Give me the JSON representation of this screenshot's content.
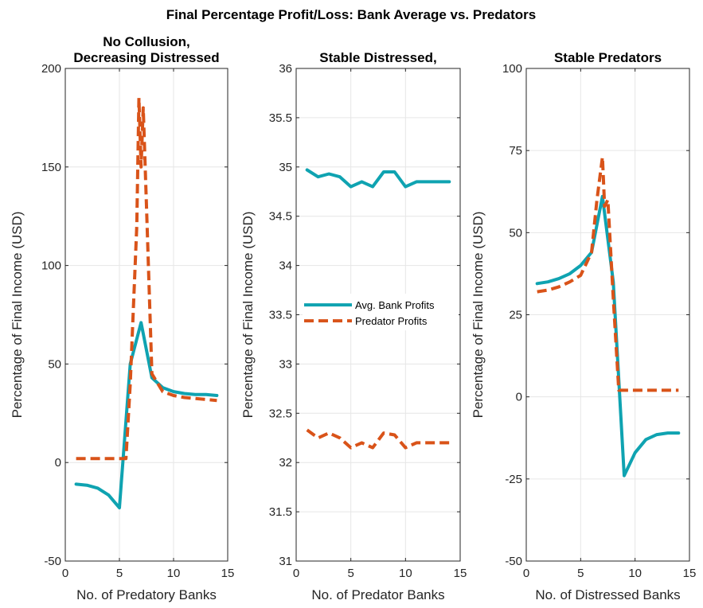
{
  "figure": {
    "suptitle": "Final Percentage Profit/Loss: Bank Average vs. Predators"
  },
  "colors": {
    "bank": "#0fa3b1",
    "predator": "#d95319"
  },
  "legend": {
    "bank": "Avg. Bank Profits",
    "predator": "Predator Profits"
  },
  "chart_data": [
    {
      "type": "line",
      "title": [
        "No Collusion,",
        "Decreasing Distressed"
      ],
      "xlabel": "No. of Predatory Banks",
      "ylabel": "Percentage of Final Income (USD)",
      "xlim": [
        0,
        15
      ],
      "ylim": [
        -50,
        200
      ],
      "xticks": [
        0,
        5,
        10,
        15
      ],
      "yticks": [
        -50,
        0,
        50,
        100,
        150,
        200
      ],
      "grid": true,
      "series": [
        {
          "name": "Avg. Bank Profits",
          "key": "bank",
          "style": "solid",
          "x": [
            1,
            2,
            3,
            4,
            5,
            6,
            7,
            8,
            9,
            10,
            11,
            12,
            13,
            14
          ],
          "y": [
            -11,
            -11.5,
            -13,
            -16.5,
            -23,
            50,
            71,
            43,
            38,
            36,
            35,
            34.5,
            34.5,
            34
          ]
        },
        {
          "name": "Predator Profits",
          "key": "predator",
          "style": "dashed",
          "x": [
            1,
            2,
            3,
            4,
            5,
            5.6,
            6,
            6.6,
            6.8,
            7,
            7.2,
            7.5,
            8,
            9,
            10,
            11,
            12,
            13,
            14
          ],
          "y": [
            2,
            2,
            2,
            2,
            2,
            2,
            40,
            120,
            185,
            150,
            180,
            130,
            45,
            36,
            34,
            33,
            32.5,
            32,
            31.5
          ]
        }
      ]
    },
    {
      "type": "line",
      "title": [
        "Stable Distressed,"
      ],
      "xlabel": "No. of Predator Banks",
      "ylabel": "Percentage of Final Income (USD)",
      "xlim": [
        0,
        15
      ],
      "ylim": [
        31,
        36
      ],
      "xticks": [
        0,
        5,
        10,
        15
      ],
      "yticks": [
        31,
        31.5,
        32,
        32.5,
        33,
        33.5,
        34,
        34.5,
        35,
        35.5,
        36
      ],
      "grid": true,
      "legend_position": "middle-left",
      "series": [
        {
          "name": "Avg. Bank Profits",
          "key": "bank",
          "style": "solid",
          "x": [
            1,
            2,
            3,
            4,
            5,
            6,
            7,
            8,
            9,
            10,
            11,
            12,
            13,
            14
          ],
          "y": [
            34.97,
            34.9,
            34.93,
            34.9,
            34.8,
            34.85,
            34.8,
            34.95,
            34.95,
            34.8,
            34.85,
            34.85,
            34.85,
            34.85
          ]
        },
        {
          "name": "Predator Profits",
          "key": "predator",
          "style": "dashed",
          "x": [
            1,
            2,
            3,
            4,
            5,
            6,
            7,
            8,
            9,
            10,
            11,
            12,
            13,
            14
          ],
          "y": [
            32.33,
            32.25,
            32.3,
            32.25,
            32.15,
            32.2,
            32.15,
            32.3,
            32.28,
            32.15,
            32.2,
            32.2,
            32.2,
            32.2
          ]
        }
      ]
    },
    {
      "type": "line",
      "title": [
        "Stable Predators"
      ],
      "xlabel": "No. of Distressed Banks",
      "ylabel": "Percentage of Final Income (USD)",
      "xlim": [
        0,
        15
      ],
      "ylim": [
        -50,
        100
      ],
      "xticks": [
        0,
        5,
        10,
        15
      ],
      "yticks": [
        -50,
        -25,
        0,
        25,
        50,
        75,
        100
      ],
      "grid": true,
      "series": [
        {
          "name": "Avg. Bank Profits",
          "key": "bank",
          "style": "solid",
          "x": [
            1,
            2,
            3,
            4,
            5,
            6,
            7,
            8,
            9,
            10,
            11,
            12,
            13,
            14
          ],
          "y": [
            34.5,
            35,
            36,
            37.5,
            40,
            44,
            61,
            35,
            -24,
            -17,
            -13,
            -11.5,
            -11,
            -11
          ]
        },
        {
          "name": "Predator Profits",
          "key": "predator",
          "style": "dashed",
          "x": [
            1,
            2,
            3,
            4,
            5,
            6,
            6.5,
            7,
            7.2,
            7.5,
            8,
            8.5,
            9,
            10,
            11,
            12,
            13,
            14
          ],
          "y": [
            32,
            32.5,
            33.5,
            35,
            37,
            44,
            60,
            73,
            58,
            60,
            30,
            2,
            2,
            2,
            2,
            2,
            2,
            2
          ]
        }
      ]
    }
  ]
}
